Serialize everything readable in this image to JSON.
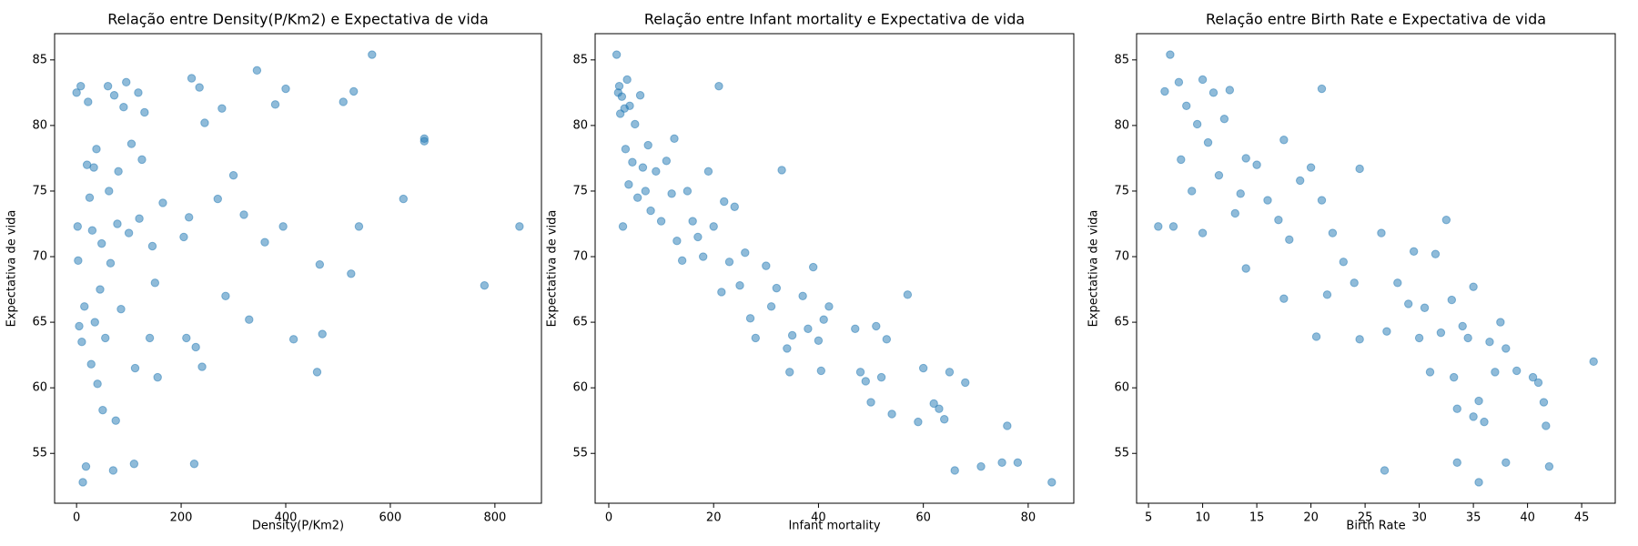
{
  "chart_data": [
    {
      "type": "scatter",
      "title": "Relação entre Density(P/Km2) e Expectativa de vida",
      "xlabel": "Density(P/Km2)",
      "ylabel": "Expectativa de vida",
      "color": "#1f77b4",
      "opacity": 0.5,
      "xlim": [
        -42,
        889
      ],
      "ylim": [
        51.2,
        87.0
      ],
      "xticks": [
        0,
        200,
        400,
        600,
        800
      ],
      "yticks": [
        55,
        60,
        65,
        70,
        75,
        80,
        85
      ],
      "x": [
        0,
        2,
        3,
        5,
        8,
        10,
        12,
        15,
        18,
        20,
        22,
        25,
        28,
        30,
        33,
        35,
        38,
        40,
        45,
        48,
        50,
        55,
        60,
        62,
        65,
        70,
        72,
        75,
        78,
        80,
        85,
        90,
        95,
        100,
        105,
        110,
        112,
        118,
        120,
        125,
        130,
        140,
        145,
        150,
        155,
        165,
        205,
        210,
        215,
        220,
        225,
        228,
        235,
        240,
        245,
        270,
        278,
        285,
        300,
        320,
        330,
        345,
        360,
        380,
        395,
        400,
        415,
        460,
        465,
        470,
        510,
        525,
        530,
        540,
        565,
        625,
        665,
        665,
        780,
        847
      ],
      "y": [
        82.5,
        72.3,
        69.7,
        64.7,
        83,
        63.5,
        52.8,
        66.2,
        54,
        77,
        81.8,
        74.5,
        61.8,
        72,
        76.8,
        65,
        78.2,
        60.3,
        67.5,
        71,
        58.3,
        63.8,
        83,
        75,
        69.5,
        53.7,
        82.3,
        57.5,
        72.5,
        76.5,
        66,
        81.4,
        83.3,
        71.8,
        78.6,
        54.2,
        61.5,
        82.5,
        72.9,
        77.4,
        81,
        63.8,
        70.8,
        68,
        60.8,
        74.1,
        71.5,
        63.8,
        73,
        83.6,
        54.2,
        63.1,
        82.9,
        61.6,
        80.2,
        74.4,
        81.3,
        67,
        76.2,
        73.2,
        65.2,
        84.2,
        71.1,
        81.6,
        72.3,
        82.8,
        63.7,
        61.2,
        69.4,
        64.1,
        81.8,
        68.7,
        82.6,
        72.3,
        85.4,
        74.4,
        79,
        78.8,
        67.8,
        72.3
      ]
    },
    {
      "type": "scatter",
      "title": "Relação entre Infant mortality e Expectativa de vida",
      "xlabel": "Infant mortality",
      "ylabel": "Expectativa de vida",
      "color": "#1f77b4",
      "opacity": 0.5,
      "xlim": [
        -2.6,
        88.7
      ],
      "ylim": [
        51.2,
        87.0
      ],
      "xticks": [
        0,
        20,
        40,
        60,
        80
      ],
      "yticks": [
        55,
        60,
        65,
        70,
        75,
        80,
        85
      ],
      "x": [
        1.5,
        1.8,
        2,
        2.2,
        2.5,
        2.7,
        3,
        3.2,
        3.5,
        3.8,
        4,
        4.5,
        5,
        5.5,
        6,
        6.5,
        7,
        7.5,
        8,
        9,
        10,
        11,
        12,
        12.5,
        13,
        14,
        15,
        16,
        17,
        18,
        19,
        20,
        21,
        21.5,
        22,
        23,
        24,
        25,
        26,
        27,
        28,
        30,
        31,
        32,
        33,
        34,
        34.5,
        35,
        37,
        38,
        39,
        40,
        40.5,
        41,
        42,
        47,
        48,
        49,
        50,
        51,
        52,
        53,
        54,
        57,
        59,
        60,
        62,
        63,
        64,
        65,
        66,
        68,
        71,
        75,
        76,
        78,
        84.5
      ],
      "y": [
        85.4,
        82.5,
        83,
        80.9,
        82.2,
        72.3,
        81.3,
        78.2,
        83.5,
        75.5,
        81.5,
        77.2,
        80.1,
        74.5,
        82.3,
        76.8,
        75,
        78.5,
        73.5,
        76.5,
        72.7,
        77.3,
        74.8,
        79,
        71.2,
        69.7,
        75,
        72.7,
        71.5,
        70,
        76.5,
        72.3,
        83,
        67.3,
        74.2,
        69.6,
        73.8,
        67.8,
        70.3,
        65.3,
        63.8,
        69.3,
        66.2,
        67.6,
        76.6,
        63,
        61.2,
        64,
        67,
        64.5,
        69.2,
        63.6,
        61.3,
        65.2,
        66.2,
        64.5,
        61.2,
        60.5,
        58.9,
        64.7,
        60.8,
        63.7,
        58,
        67.1,
        57.4,
        61.5,
        58.8,
        58.4,
        57.6,
        61.2,
        53.7,
        60.4,
        54,
        54.3,
        57.1,
        54.3,
        52.8
      ]
    },
    {
      "type": "scatter",
      "title": "Relação entre Birth Rate e Expectativa de vida",
      "xlabel": "Birth Rate",
      "ylabel": "Expectativa de vida",
      "color": "#1f77b4",
      "opacity": 0.5,
      "xlim": [
        3.9,
        48.1
      ],
      "ylim": [
        51.2,
        87.0
      ],
      "xticks": [
        5,
        10,
        15,
        20,
        25,
        30,
        35,
        40,
        45
      ],
      "yticks": [
        55,
        60,
        65,
        70,
        75,
        80,
        85
      ],
      "x": [
        5.9,
        6.5,
        7,
        7.3,
        7.8,
        8,
        8.5,
        9,
        9.5,
        10,
        10,
        10.5,
        11,
        11.5,
        12,
        12.5,
        13,
        13.5,
        14,
        14,
        15,
        16,
        17,
        17.5,
        17.5,
        18,
        19,
        20,
        20.5,
        21,
        21,
        21.5,
        22,
        23,
        24,
        24.5,
        24.5,
        26.5,
        26.8,
        27,
        28,
        29,
        29.5,
        30,
        30.5,
        31,
        31.5,
        32,
        32.5,
        33,
        33.2,
        33.5,
        33.5,
        34,
        34.5,
        35,
        35,
        35.5,
        35.5,
        36,
        36.5,
        37,
        37.5,
        38,
        38,
        39,
        40.5,
        41,
        41.5,
        41.7,
        42,
        46.1
      ],
      "y": [
        72.3,
        82.6,
        85.4,
        72.3,
        83.3,
        77.4,
        81.5,
        75,
        80.1,
        83.5,
        71.8,
        78.7,
        82.5,
        76.2,
        80.5,
        82.7,
        73.3,
        74.8,
        77.5,
        69.1,
        77,
        74.3,
        72.8,
        78.9,
        66.8,
        71.3,
        75.8,
        76.8,
        63.9,
        74.3,
        82.8,
        67.1,
        71.8,
        69.6,
        68,
        76.7,
        63.7,
        71.8,
        53.7,
        64.3,
        68,
        66.4,
        70.4,
        63.8,
        66.1,
        61.2,
        70.2,
        64.2,
        72.8,
        66.7,
        60.8,
        54.3,
        58.4,
        64.7,
        63.8,
        67.7,
        57.8,
        52.8,
        59,
        57.4,
        63.5,
        61.2,
        65,
        54.3,
        63,
        61.3,
        60.8,
        60.4,
        58.9,
        57.1,
        54,
        62
      ]
    }
  ]
}
